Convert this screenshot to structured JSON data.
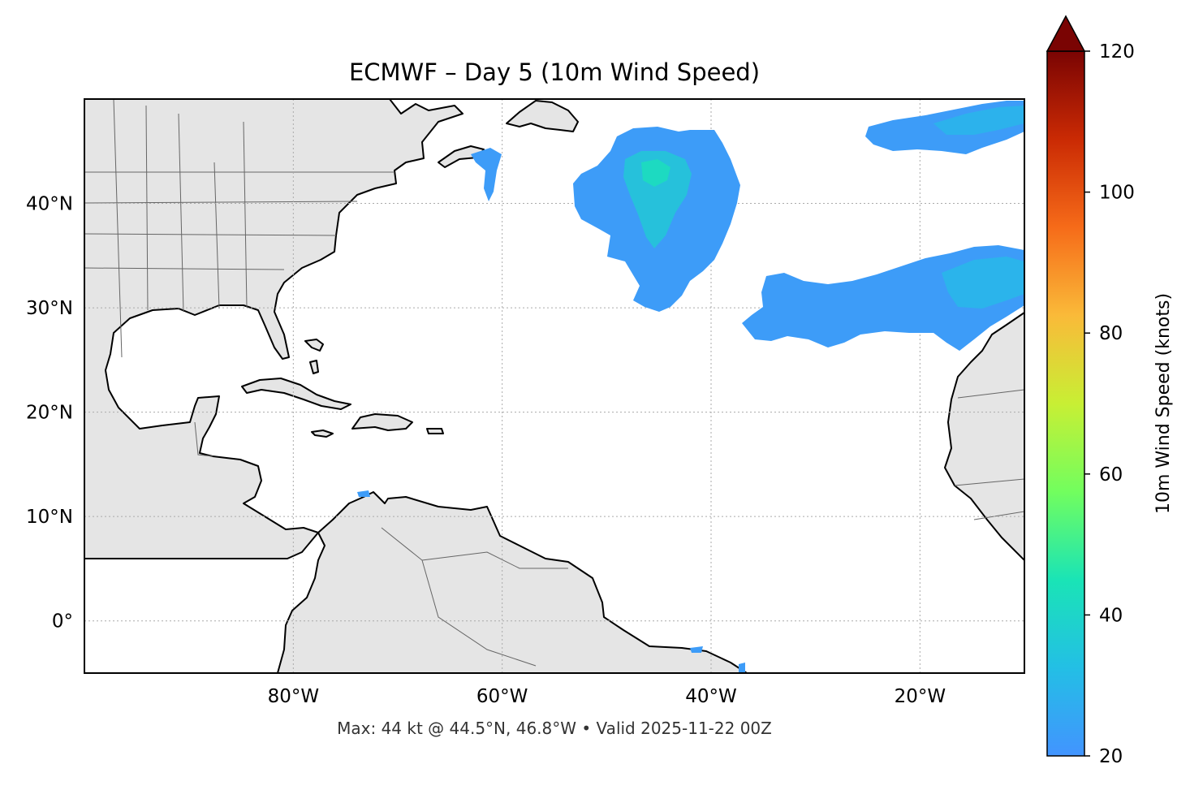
{
  "title": "ECMWF – Day 5 (10m Wind Speed)",
  "footer": "Max: 44 kt @ 44.5°N, 46.8°W • Valid 2025-11-22 00Z",
  "map": {
    "lon_range": [
      -100,
      -10
    ],
    "lat_range": [
      -5,
      50
    ],
    "lat_ticks": [
      {
        "value": 40,
        "label": "40°N"
      },
      {
        "value": 30,
        "label": "30°N"
      },
      {
        "value": 20,
        "label": "20°N"
      },
      {
        "value": 10,
        "label": "10°N"
      },
      {
        "value": 0,
        "label": "0°"
      }
    ],
    "lon_ticks": [
      {
        "value": -80,
        "label": "80°W"
      },
      {
        "value": -60,
        "label": "60°W"
      },
      {
        "value": -40,
        "label": "40°W"
      },
      {
        "value": -20,
        "label": "20°W"
      }
    ],
    "gridlines": true,
    "land_color": "#e5e5e5",
    "coast_color": "#000000",
    "border_color": "#666666"
  },
  "colorbar": {
    "label": "10m Wind Speed (knots)",
    "min": 20,
    "max": 120,
    "ticks": [
      20,
      40,
      60,
      80,
      100,
      120
    ],
    "extend": "max",
    "colors": [
      "#4294ff",
      "#23bfe5",
      "#1ae4b6",
      "#72fe5e",
      "#c8ef34",
      "#faba39",
      "#f66b19",
      "#ca2a04",
      "#7a0403"
    ]
  },
  "chart_data": {
    "type": "heatmap",
    "variable": "10m Wind Speed",
    "units": "knots",
    "max_value": 44,
    "max_location": {
      "lat": 44.5,
      "lon": -46.8
    },
    "valid_time": "2025-11-22 00Z",
    "wind_regions": [
      {
        "lat_range": [
          34,
          45
        ],
        "lon_range": [
          -53,
          -37
        ],
        "peak_kt": 44
      },
      {
        "lat_range": [
          26,
          36
        ],
        "lon_range": [
          -34,
          -10
        ],
        "peak_kt": 30
      },
      {
        "lat_range": [
          46,
          50
        ],
        "lon_range": [
          -24,
          -10
        ],
        "peak_kt": 26
      }
    ]
  }
}
